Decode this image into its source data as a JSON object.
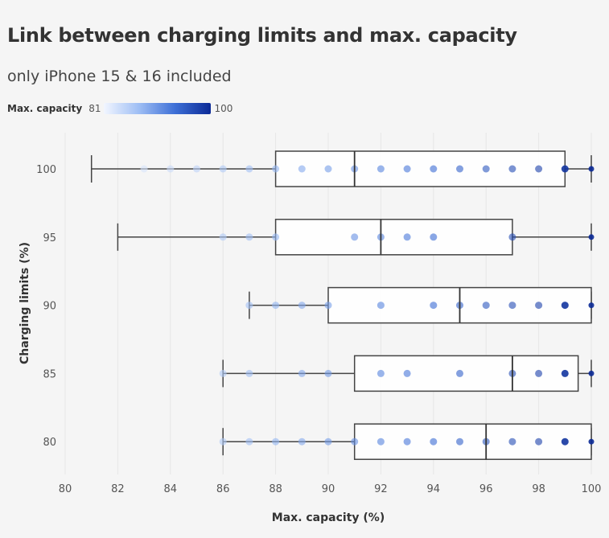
{
  "chart_data": {
    "type": "box",
    "title": "Link between charging limits and max. capacity",
    "subtitle": "only iPhone 15 & 16 included",
    "legend": {
      "title": "Max. capacity",
      "min_label": "81",
      "max_label": "100",
      "colors": [
        "#f2f6ff",
        "#9dbdf4",
        "#3d6fd6",
        "#0b2a96"
      ]
    },
    "xlabel": "Max. capacity (%)",
    "ylabel": "Charging limits (%)",
    "xlim": [
      80,
      100
    ],
    "xticks": [
      "80",
      "82",
      "84",
      "86",
      "88",
      "90",
      "92",
      "94",
      "96",
      "98",
      "100"
    ],
    "categories": [
      "100",
      "95",
      "90",
      "85",
      "80"
    ],
    "grid": "vertical",
    "boxes": [
      {
        "category": "100",
        "whisker_low": 81,
        "q1": 88,
        "median": 91,
        "q3": 99,
        "whisker_high": 100,
        "points": [
          83,
          84,
          85,
          86,
          87,
          88,
          89,
          90,
          91,
          92,
          93,
          94,
          95,
          96,
          97,
          98,
          99,
          100
        ]
      },
      {
        "category": "95",
        "whisker_low": 82,
        "q1": 88,
        "median": 92,
        "q3": 97,
        "whisker_high": 100,
        "points": [
          86,
          87,
          88,
          91,
          92,
          93,
          94,
          97,
          100
        ]
      },
      {
        "category": "90",
        "whisker_low": 87,
        "q1": 90,
        "median": 95,
        "q3": 100,
        "whisker_high": 100,
        "points": [
          87,
          88,
          89,
          90,
          92,
          94,
          95,
          96,
          97,
          98,
          99,
          100
        ]
      },
      {
        "category": "85",
        "whisker_low": 86,
        "q1": 91,
        "median": 97,
        "q3": 99.5,
        "whisker_high": 100,
        "points": [
          86,
          87,
          89,
          90,
          92,
          93,
          95,
          97,
          98,
          99,
          100
        ]
      },
      {
        "category": "80",
        "whisker_low": 86,
        "q1": 91,
        "median": 96,
        "q3": 100,
        "whisker_high": 100,
        "points": [
          86,
          87,
          88,
          89,
          90,
          91,
          92,
          93,
          94,
          95,
          96,
          97,
          98,
          99,
          100
        ]
      }
    ]
  }
}
